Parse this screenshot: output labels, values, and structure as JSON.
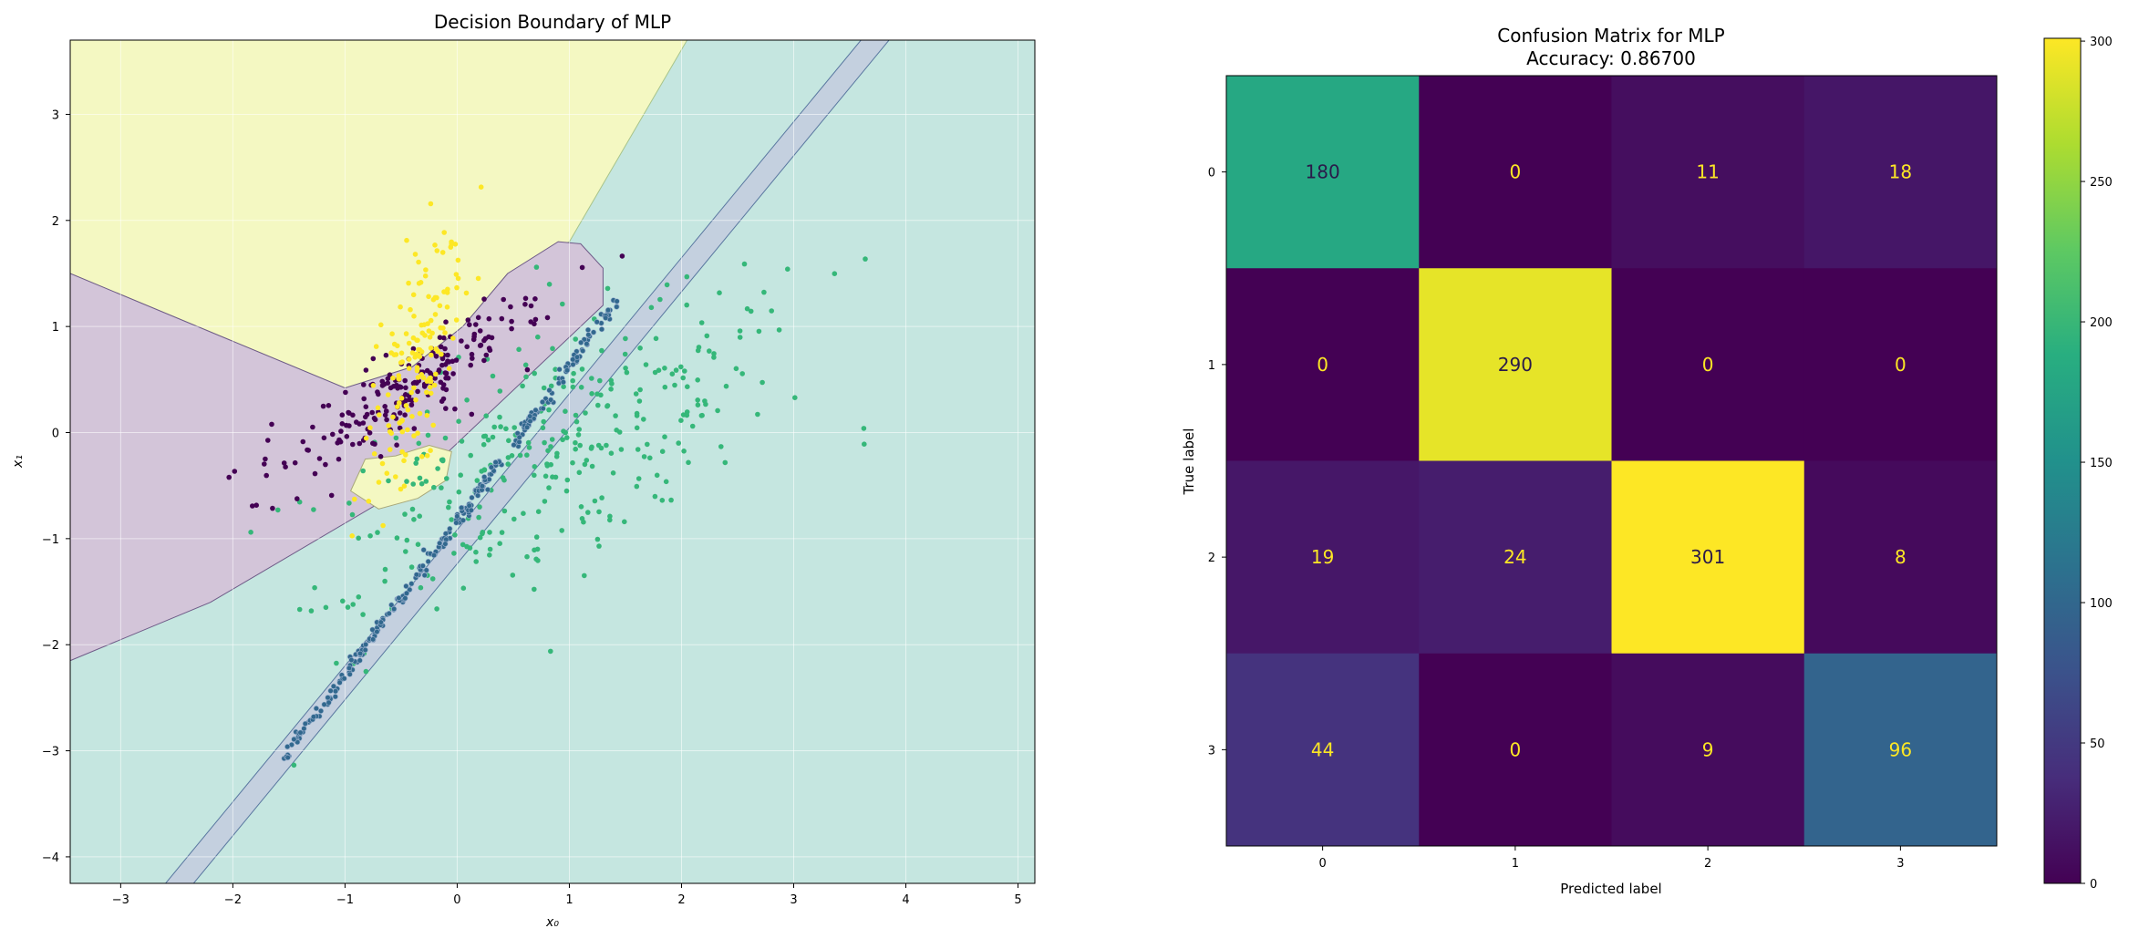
{
  "chart_data": [
    {
      "type": "scatter",
      "title": "Decision Boundary of MLP",
      "xlabel": "x₀",
      "ylabel": "x₁",
      "xlim": [
        -3.45,
        5.15
      ],
      "ylim": [
        -4.25,
        3.7
      ],
      "xticks": [
        -3,
        -2,
        -1,
        0,
        1,
        2,
        3,
        4,
        5
      ],
      "yticks": [
        -4,
        -3,
        -2,
        -1,
        0,
        1,
        2,
        3
      ],
      "grid": true,
      "regions": {
        "yellow_class": {
          "color": "#fde725",
          "polygon": [
            [
              -3.45,
              1.5
            ],
            [
              -1.0,
              0.42
            ],
            [
              -0.4,
              0.62
            ],
            [
              0.05,
              1.0
            ],
            [
              0.45,
              1.5
            ],
            [
              1.0,
              1.8
            ],
            [
              2.05,
              3.7
            ],
            [
              -3.45,
              3.7
            ]
          ]
        },
        "yellow_lobe": {
          "color": "#fde725",
          "polygon": [
            [
              -0.82,
              -0.25
            ],
            [
              -0.55,
              -0.22
            ],
            [
              -0.25,
              -0.12
            ],
            [
              -0.05,
              -0.18
            ],
            [
              -0.1,
              -0.45
            ],
            [
              -0.35,
              -0.62
            ],
            [
              -0.7,
              -0.72
            ],
            [
              -0.95,
              -0.55
            ]
          ]
        },
        "purple_class": {
          "color": "#440154",
          "polygon": [
            [
              -3.45,
              1.5
            ],
            [
              -1.0,
              0.42
            ],
            [
              -0.4,
              0.62
            ],
            [
              0.05,
              1.0
            ],
            [
              0.45,
              1.5
            ],
            [
              0.9,
              1.8
            ],
            [
              1.1,
              1.78
            ],
            [
              1.3,
              1.55
            ],
            [
              1.3,
              1.2
            ],
            [
              -0.35,
              -0.45
            ],
            [
              -2.2,
              -1.6
            ],
            [
              -3.45,
              -2.15
            ]
          ]
        },
        "teal_class": {
          "color": "#21918c"
        },
        "blue_band": {
          "color": "#3b528b",
          "polygon": [
            [
              -2.6,
              -4.25
            ],
            [
              3.6,
              3.7
            ],
            [
              3.85,
              3.7
            ],
            [
              -2.35,
              -4.25
            ]
          ]
        }
      },
      "series": [
        {
          "class": 0,
          "color": "#440154"
        },
        {
          "class": 1,
          "color": "#31688e"
        },
        {
          "class": 2,
          "color": "#35b779"
        },
        {
          "class": 3,
          "color": "#fde725"
        }
      ]
    },
    {
      "type": "heatmap",
      "title": "Confusion Matrix for MLP",
      "subtitle": "Accuracy: 0.86700",
      "xlabel": "Predicted label",
      "ylabel": "True label",
      "categories": [
        "0",
        "1",
        "2",
        "3"
      ],
      "matrix": [
        [
          180,
          0,
          11,
          18
        ],
        [
          0,
          290,
          0,
          0
        ],
        [
          19,
          24,
          301,
          8
        ],
        [
          44,
          0,
          9,
          96
        ]
      ],
      "colormap": "viridis",
      "vmin": 0,
      "vmax": 301,
      "colorbar_ticks": [
        0,
        50,
        100,
        150,
        200,
        250,
        300
      ]
    }
  ]
}
